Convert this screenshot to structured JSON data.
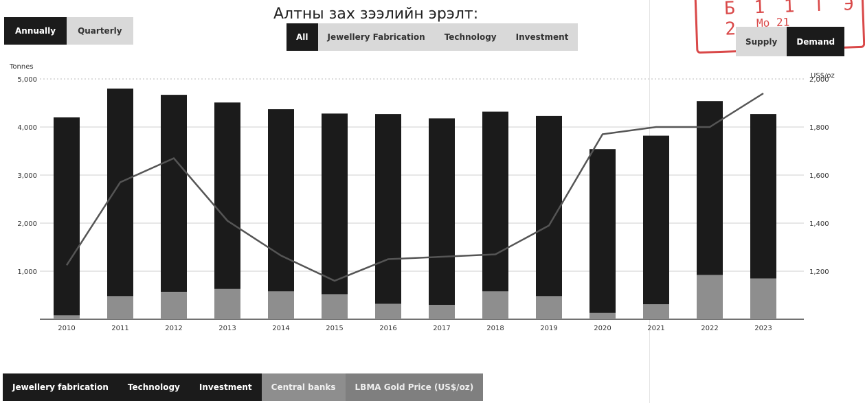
{
  "title": "Алтны зах зээлийн эрэлт:",
  "frequency_toggle": {
    "annually": "Annually",
    "quarterly": "Quarterly",
    "selected": "Annually"
  },
  "category_tabs": [
    "All",
    "Jewellery Fabrication",
    "Technology",
    "Investment"
  ],
  "category_selected": "All",
  "supply_demand_toggle": {
    "supply": "Supply",
    "demand": "Demand",
    "selected": "Demand"
  },
  "legend": [
    "Jewellery fabrication",
    "Technology",
    "Investment",
    "Central banks",
    "LBMA Gold Price (US$/oz)"
  ],
  "stamp_lines": [
    "Б 1 1 Т Э 2",
    "Мо 21"
  ],
  "colors": {
    "bar": "#1b1b1b",
    "central_banks": "#8e8e8e",
    "price_line": "#555555",
    "stamp": "#d94848"
  },
  "chart_data": {
    "type": "bar",
    "categories": [
      "2010",
      "2011",
      "2012",
      "2013",
      "2014",
      "2015",
      "2016",
      "2017",
      "2018",
      "2019",
      "2020",
      "2021",
      "2022",
      "2023"
    ],
    "series": [
      {
        "name": "Jewellery fabrication + Technology + Investment",
        "values": [
          4120,
          4320,
          4100,
          3880,
          3790,
          3760,
          3950,
          3880,
          3740,
          3750,
          3410,
          3510,
          3620,
          3420
        ]
      },
      {
        "name": "Central banks",
        "values": [
          80,
          480,
          570,
          630,
          580,
          520,
          320,
          300,
          580,
          480,
          130,
          310,
          920,
          850
        ]
      },
      {
        "name": "LBMA Gold Price (US$/oz)",
        "axis": "right",
        "values": [
          1225,
          1570,
          1670,
          1410,
          1265,
          1160,
          1250,
          1260,
          1270,
          1390,
          1770,
          1800,
          1800,
          1940
        ]
      }
    ],
    "ylabel_left": "Tonnes",
    "ylabel_right": "US$/oz",
    "ylim_left": [
      0,
      5000
    ],
    "yticks_left": [
      "1,000",
      "2,000",
      "3,000",
      "4,000",
      "5,000"
    ],
    "ylim_right": [
      1000,
      2000
    ],
    "yticks_right": [
      "1,200",
      "1,400",
      "1,600",
      "1,800",
      "2,000"
    ],
    "grid": true
  }
}
